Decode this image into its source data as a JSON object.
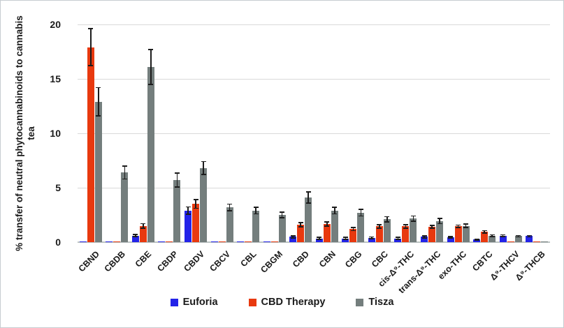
{
  "figure": {
    "background": "#ffffff",
    "border_color": "#c7ccd0"
  },
  "chart_data": {
    "type": "bar",
    "title": "",
    "xlabel": "",
    "ylabel_line1": "% transfer of neutral phytocannabinoids to cannabis",
    "ylabel_line2": "tea",
    "ylim": [
      0,
      20
    ],
    "yticks": [
      0,
      5,
      10,
      15,
      20
    ],
    "grid": "horizontal",
    "legend_position": "bottom",
    "error_bar_color": "#1c1c1c",
    "gridline_color": "#d9d9d9",
    "categories": [
      "CBND",
      "CBDB",
      "CBE",
      "CBDP",
      "CBDV",
      "CBCV",
      "CBL",
      "CBGM",
      "CBD",
      "CBN",
      "CBG",
      "CBC",
      "cis-Δ⁹-THC",
      "trans-Δ⁹-THC",
      "exo-THC",
      "CBTC",
      "Δ⁹-THCV",
      "Δ⁹-THCB"
    ],
    "series": [
      {
        "name": "Euforia",
        "color": "#2323e8",
        "values": [
          0.05,
          0.05,
          0.6,
          0.05,
          2.9,
          0.05,
          0.05,
          0.05,
          0.5,
          0.35,
          0.35,
          0.4,
          0.35,
          0.5,
          0.45,
          0.25,
          0.6,
          0.55
        ],
        "errors": [
          0,
          0,
          0.1,
          0,
          0.35,
          0,
          0,
          0,
          0.1,
          0.08,
          0.08,
          0.08,
          0.08,
          0.1,
          0.08,
          0.05,
          0.07,
          0.07
        ]
      },
      {
        "name": "CBD Therapy",
        "color": "#e8390f",
        "values": [
          17.9,
          0.05,
          1.5,
          0.05,
          3.5,
          0.05,
          0.05,
          0.05,
          1.6,
          1.65,
          1.2,
          1.45,
          1.45,
          1.4,
          1.45,
          0.95,
          0.05,
          0.05
        ],
        "errors": [
          1.7,
          0,
          0.2,
          0,
          0.4,
          0,
          0,
          0,
          0.18,
          0.2,
          0.15,
          0.15,
          0.15,
          0.12,
          0.12,
          0.12,
          0,
          0
        ]
      },
      {
        "name": "Tisza",
        "color": "#747e7d",
        "values": [
          12.9,
          6.4,
          16.1,
          5.7,
          6.8,
          3.2,
          2.9,
          2.5,
          4.1,
          2.9,
          2.7,
          2.1,
          2.15,
          1.95,
          1.5,
          0.6,
          0.55,
          0.05
        ],
        "errors": [
          1.3,
          0.6,
          1.6,
          0.65,
          0.6,
          0.3,
          0.3,
          0.25,
          0.5,
          0.3,
          0.3,
          0.25,
          0.25,
          0.25,
          0.15,
          0.07,
          0.07,
          0
        ]
      }
    ]
  }
}
